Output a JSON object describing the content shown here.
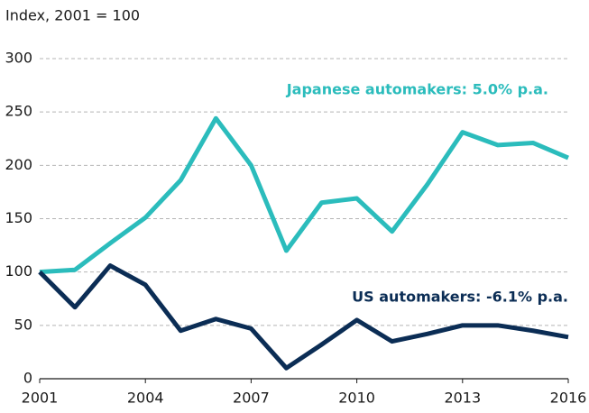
{
  "chart_data": {
    "type": "line",
    "y_label": "Index, 2001 = 100",
    "x": [
      2001,
      2002,
      2003,
      2004,
      2005,
      2006,
      2007,
      2008,
      2009,
      2010,
      2011,
      2012,
      2013,
      2014,
      2015,
      2016
    ],
    "series": [
      {
        "name": "Japanese automakers: 5.0% p.a.",
        "color": "#2bbcbc",
        "values": [
          100,
          102,
          127,
          151,
          186,
          244,
          200,
          120,
          165,
          169,
          138,
          182,
          231,
          219,
          221,
          207
        ]
      },
      {
        "name": "US automakers: -6.1% p.a.",
        "color": "#0b2d55",
        "values": [
          100,
          67,
          106,
          88,
          45,
          56,
          47,
          10,
          32,
          55,
          35,
          42,
          50,
          50,
          45,
          39
        ]
      }
    ],
    "xlim": [
      2001,
      2016
    ],
    "xticks": [
      2001,
      2004,
      2007,
      2010,
      2013,
      2016
    ],
    "ylim": [
      0,
      300
    ],
    "yticks": [
      0,
      50,
      100,
      150,
      200,
      250,
      300
    ],
    "grid": true
  }
}
